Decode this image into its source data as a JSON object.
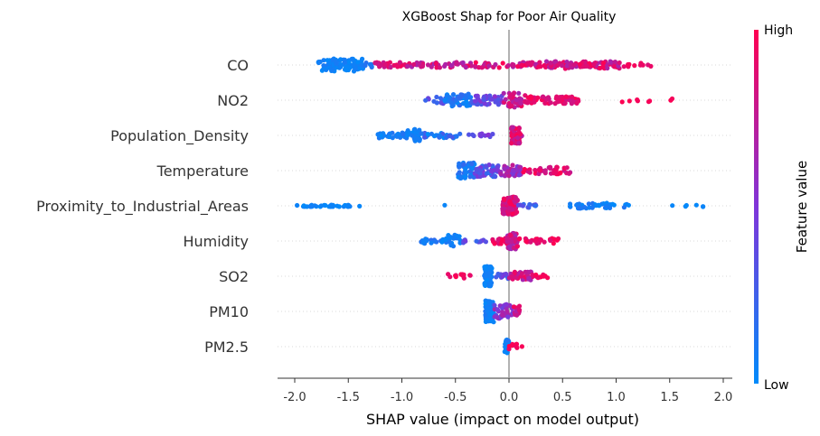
{
  "chart_data": {
    "type": "scatter",
    "subtype": "shap-beeswarm",
    "title": "XGBoost Shap for Poor Air Quality",
    "xlabel": "SHAP value (impact on model output)",
    "ylabel": "",
    "xlim": [
      -2.2,
      2.1
    ],
    "xticks": [
      "-2.0",
      "-1.5",
      "-1.0",
      "-0.5",
      "0.0",
      "0.5",
      "1.0",
      "1.5",
      "2.0"
    ],
    "xtick_values": [
      -2.0,
      -1.5,
      -1.0,
      -0.5,
      0.0,
      0.5,
      1.0,
      1.5,
      2.0
    ],
    "grid": false,
    "colorbar": {
      "label": "Feature value",
      "high_label": "High",
      "low_label": "Low",
      "high_color": "#ff0051",
      "low_color": "#008bfb"
    },
    "features": [
      {
        "name": "CO",
        "clusters": [
          {
            "range": [
              -1.78,
              -1.36
            ],
            "count": 95,
            "color": [
              0.0,
              0.1
            ],
            "spread": 7
          },
          {
            "range": [
              -1.35,
              -1.28
            ],
            "count": 6,
            "color": [
              0.05,
              0.2
            ],
            "spread": 4
          },
          {
            "range": [
              -1.25,
              -0.95
            ],
            "count": 30,
            "color": [
              0.75,
              1.0
            ],
            "spread": 3
          },
          {
            "range": [
              -0.95,
              -0.65
            ],
            "count": 25,
            "color": [
              0.6,
              0.95
            ],
            "spread": 3
          },
          {
            "range": [
              -0.65,
              -0.5
            ],
            "count": 8,
            "color": [
              0.65,
              1.0
            ],
            "spread": 3
          },
          {
            "range": [
              -0.5,
              0.35
            ],
            "count": 70,
            "color": [
              0.6,
              1.0
            ],
            "spread": 3
          },
          {
            "range": [
              0.35,
              1.05
            ],
            "count": 90,
            "color": [
              0.65,
              1.0
            ],
            "spread": 4
          },
          {
            "range": [
              1.05,
              1.35
            ],
            "count": 10,
            "color": [
              0.85,
              1.0
            ],
            "spread": 2
          }
        ]
      },
      {
        "name": "NO2",
        "clusters": [
          {
            "range": [
              -0.78,
              -0.5
            ],
            "count": 20,
            "color": [
              0.2,
              0.45
            ],
            "spread": 4
          },
          {
            "range": [
              -0.6,
              -0.35
            ],
            "count": 50,
            "color": [
              0.0,
              0.2
            ],
            "spread": 7
          },
          {
            "range": [
              -0.35,
              -0.05
            ],
            "count": 50,
            "color": [
              0.25,
              0.55
            ],
            "spread": 5
          },
          {
            "range": [
              -0.05,
              0.15
            ],
            "count": 40,
            "color": [
              0.6,
              0.95
            ],
            "spread": 8
          },
          {
            "range": [
              0.15,
              0.65
            ],
            "count": 65,
            "color": [
              0.8,
              1.0
            ],
            "spread": 4
          },
          {
            "range": [
              0.85,
              1.55
            ],
            "count": 8,
            "color": [
              0.95,
              1.0
            ],
            "spread": 2
          }
        ]
      },
      {
        "name": "Population_Density",
        "clusters": [
          {
            "range": [
              -1.23,
              -0.85
            ],
            "count": 35,
            "color": [
              0.0,
              0.15
            ],
            "spread": 3
          },
          {
            "range": [
              -0.95,
              -0.82
            ],
            "count": 25,
            "color": [
              0.0,
              0.1
            ],
            "spread": 7
          },
          {
            "range": [
              -0.82,
              -0.45
            ],
            "count": 30,
            "color": [
              0.0,
              0.3
            ],
            "spread": 3
          },
          {
            "range": [
              -0.45,
              -0.12
            ],
            "count": 12,
            "color": [
              0.3,
              0.6
            ],
            "spread": 2
          },
          {
            "range": [
              0.02,
              0.12
            ],
            "count": 50,
            "color": [
              0.7,
              1.0
            ],
            "spread": 9
          }
        ]
      },
      {
        "name": "Temperature",
        "clusters": [
          {
            "range": [
              -0.48,
              -0.32
            ],
            "count": 45,
            "color": [
              0.0,
              0.2
            ],
            "spread": 9
          },
          {
            "range": [
              -0.32,
              -0.1
            ],
            "count": 45,
            "color": [
              0.15,
              0.5
            ],
            "spread": 7
          },
          {
            "range": [
              -0.1,
              0.12
            ],
            "count": 45,
            "color": [
              0.45,
              0.8
            ],
            "spread": 6
          },
          {
            "range": [
              0.12,
              0.58
            ],
            "count": 40,
            "color": [
              0.75,
              1.0
            ],
            "spread": 4
          }
        ]
      },
      {
        "name": "Proximity_to_Industrial_Areas",
        "clusters": [
          {
            "range": [
              -1.98,
              -1.48
            ],
            "count": 40,
            "color": [
              0.0,
              0.08
            ],
            "spread": 1
          },
          {
            "range": [
              -1.42,
              -1.38
            ],
            "count": 1,
            "color": [
              0.0,
              0.05
            ],
            "spread": 1
          },
          {
            "range": [
              -0.6,
              -0.6
            ],
            "count": 1,
            "color": [
              0.0,
              0.05
            ],
            "spread": 1
          },
          {
            "range": [
              -0.06,
              0.08
            ],
            "count": 90,
            "color": [
              0.75,
              1.0
            ],
            "spread": 10
          },
          {
            "range": [
              0.05,
              0.3
            ],
            "count": 12,
            "color": [
              0.15,
              0.4
            ],
            "spread": 2
          },
          {
            "range": [
              0.55,
              1.15
            ],
            "count": 45,
            "color": [
              0.0,
              0.15
            ],
            "spread": 3
          },
          {
            "range": [
              1.5,
              1.85
            ],
            "count": 6,
            "color": [
              0.0,
              0.05
            ],
            "spread": 1
          }
        ]
      },
      {
        "name": "Humidity",
        "clusters": [
          {
            "range": [
              -0.82,
              -0.55
            ],
            "count": 25,
            "color": [
              0.0,
              0.2
            ],
            "spread": 3
          },
          {
            "range": [
              -0.58,
              -0.45
            ],
            "count": 15,
            "color": [
              0.0,
              0.1
            ],
            "spread": 7
          },
          {
            "range": [
              -0.45,
              -0.2
            ],
            "count": 12,
            "color": [
              0.2,
              0.45
            ],
            "spread": 2
          },
          {
            "range": [
              -0.18,
              0.02
            ],
            "count": 25,
            "color": [
              0.85,
              1.0
            ],
            "spread": 3
          },
          {
            "range": [
              -0.02,
              0.08
            ],
            "count": 55,
            "color": [
              0.6,
              0.95
            ],
            "spread": 9
          },
          {
            "range": [
              0.08,
              0.48
            ],
            "count": 25,
            "color": [
              0.85,
              1.0
            ],
            "spread": 3
          }
        ]
      },
      {
        "name": "SO2",
        "clusters": [
          {
            "range": [
              -0.58,
              -0.35
            ],
            "count": 12,
            "color": [
              0.9,
              1.0
            ],
            "spread": 3
          },
          {
            "range": [
              -0.23,
              -0.16
            ],
            "count": 70,
            "color": [
              0.0,
              0.1
            ],
            "spread": 11
          },
          {
            "range": [
              -0.12,
              0.02
            ],
            "count": 15,
            "color": [
              0.2,
              0.5
            ],
            "spread": 3
          },
          {
            "range": [
              0.0,
              0.22
            ],
            "count": 40,
            "color": [
              0.6,
              0.95
            ],
            "spread": 5
          },
          {
            "range": [
              0.22,
              0.36
            ],
            "count": 10,
            "color": [
              0.85,
              1.0
            ],
            "spread": 2
          }
        ]
      },
      {
        "name": "PM10",
        "clusters": [
          {
            "range": [
              -0.22,
              -0.14
            ],
            "count": 80,
            "color": [
              0.0,
              0.15
            ],
            "spread": 12
          },
          {
            "range": [
              -0.14,
              0.04
            ],
            "count": 35,
            "color": [
              0.35,
              0.7
            ],
            "spread": 8
          },
          {
            "range": [
              0.04,
              0.1
            ],
            "count": 15,
            "color": [
              0.6,
              0.95
            ],
            "spread": 6
          }
        ]
      },
      {
        "name": "PM2.5",
        "clusters": [
          {
            "range": [
              -0.04,
              0.0
            ],
            "count": 25,
            "color": [
              0.0,
              0.15
            ],
            "spread": 8
          },
          {
            "range": [
              0.0,
              0.08
            ],
            "count": 10,
            "color": [
              0.85,
              1.0
            ],
            "spread": 3
          },
          {
            "range": [
              0.12,
              0.15
            ],
            "count": 1,
            "color": [
              0.95,
              1.0
            ],
            "spread": 1
          }
        ]
      }
    ]
  }
}
